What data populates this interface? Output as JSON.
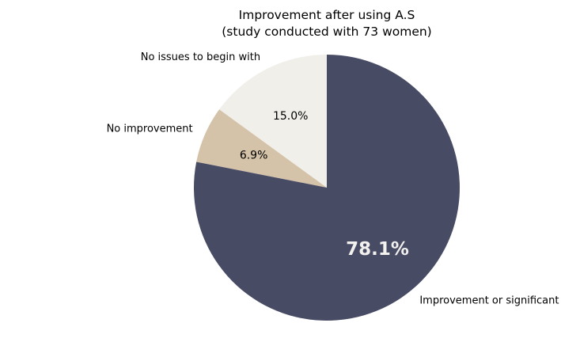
{
  "chart_data": {
    "type": "pie",
    "title_line1": "Improvement after using A.S",
    "title_line2": "(study conducted with 73 women)",
    "slices": [
      {
        "label": "No issues to begin with",
        "value": 15.0,
        "pct_label": "15.0%",
        "color": "#f0efea"
      },
      {
        "label": "No improvement",
        "value": 6.9,
        "pct_label": "6.9%",
        "color": "#d4c2a9"
      },
      {
        "label": "Improvement or significant improvement",
        "value": 78.1,
        "pct_label": "78.1%",
        "color": "#474b64"
      }
    ]
  }
}
